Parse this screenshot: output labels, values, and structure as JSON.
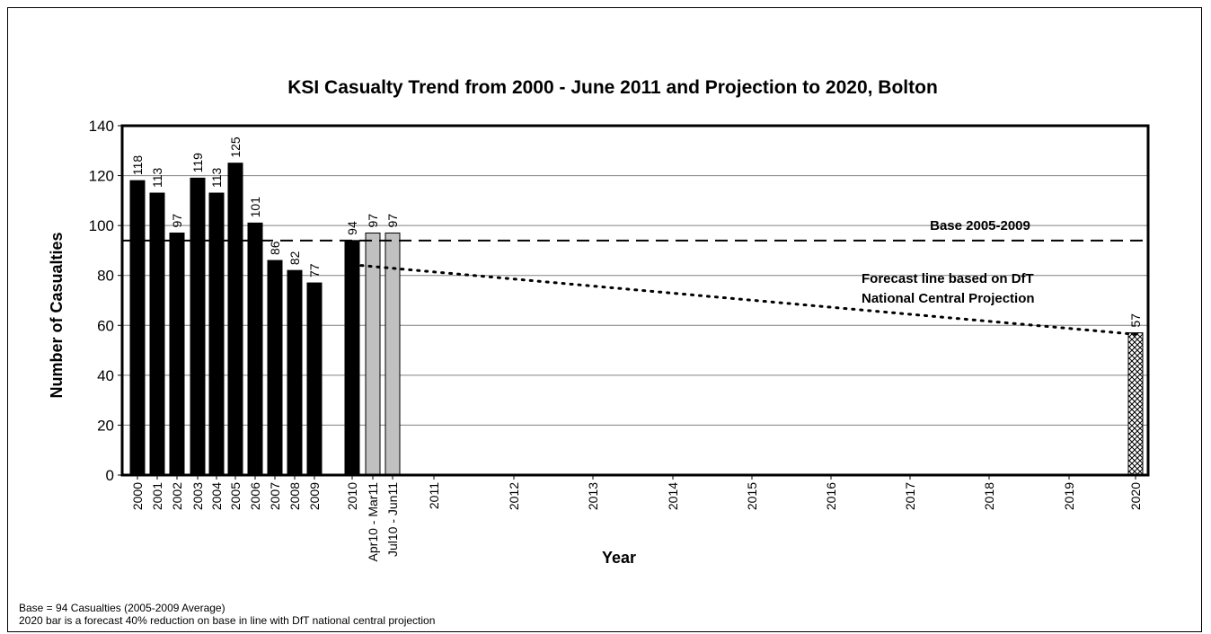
{
  "chart_data": {
    "type": "bar",
    "title": "KSI Casualty Trend from 2000 - June 2011 and Projection to 2020, Bolton",
    "xlabel": "Year",
    "ylabel": "Number of Casualties",
    "ylim": [
      0,
      140
    ],
    "yticks": [
      "0",
      "20",
      "40",
      "60",
      "80",
      "100",
      "120",
      "140"
    ],
    "grid": true,
    "categories": [
      "2000",
      "2001",
      "2002",
      "2003",
      "2004",
      "2005",
      "2006",
      "2007",
      "2008",
      "2009",
      "2010",
      "Apr10 - Mar11",
      "Jul10 - Jun11",
      "2011",
      "2012",
      "2013",
      "2014",
      "2015",
      "2016",
      "2017",
      "2018",
      "2019",
      "2020"
    ],
    "values": [
      118,
      113,
      97,
      119,
      113,
      125,
      101,
      86,
      82,
      77,
      94,
      97,
      97,
      null,
      null,
      null,
      null,
      null,
      null,
      null,
      null,
      null,
      57
    ],
    "value_labels": [
      "118",
      "113",
      "97",
      "119",
      "113",
      "125",
      "101",
      "86",
      "82",
      "77",
      "94",
      "97",
      "97",
      "",
      "",
      "",
      "",
      "",
      "",
      "",
      "",
      "",
      "57"
    ],
    "bar_styles": [
      "actual",
      "actual",
      "actual",
      "actual",
      "actual",
      "actual",
      "actual",
      "actual",
      "actual",
      "actual",
      "actual",
      "rolling",
      "rolling",
      "",
      "",
      "",
      "",
      "",
      "",
      "",
      "",
      "",
      "forecast"
    ],
    "colors": {
      "actual": "#000000",
      "rolling": "#c0c0c0",
      "forecast_hatch": "#000000"
    },
    "base_line": {
      "value": 94,
      "label": "Base 2005-2009",
      "style": "dashed"
    },
    "forecast_line": {
      "label_lines": [
        "Forecast line based on DfT",
        "National Central Projection"
      ],
      "style": "dotted",
      "x": [
        "2010",
        "2020"
      ],
      "y": [
        84,
        56.4
      ]
    }
  },
  "notes": {
    "line1": "Base = 94 Casualties (2005-2009 Average)",
    "line2": "2020 bar is a forecast 40% reduction on base in line with DfT national central projection"
  }
}
